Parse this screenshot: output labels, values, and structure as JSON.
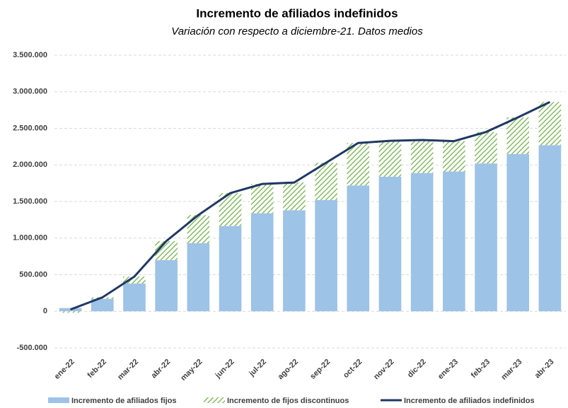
{
  "chart_data": {
    "type": "bar-line",
    "title": "Incremento de afiliados indefinidos",
    "subtitle": "Variación con respecto a diciembre-21. Datos medios",
    "categories": [
      "ene-22",
      "feb-22",
      "mar-22",
      "abr-22",
      "may-22",
      "jun-22",
      "jul-22",
      "ago-22",
      "sep-22",
      "oct-22",
      "nov-22",
      "dic-22",
      "ene-23",
      "feb-23",
      "mar-23",
      "abr-23"
    ],
    "series": [
      {
        "name": "Incremento de afiliados fijos",
        "kind": "bar",
        "color": "#9dc3e6",
        "values": [
          45000,
          170000,
          380000,
          700000,
          930000,
          1165000,
          1340000,
          1380000,
          1520000,
          1720000,
          1840000,
          1890000,
          1910000,
          2020000,
          2150000,
          2270000
        ]
      },
      {
        "name": "Incremento de fijos discontinuos",
        "kind": "bar",
        "color": "#70ad47",
        "values": [
          -20000,
          20000,
          95000,
          260000,
          385000,
          450000,
          400000,
          380000,
          510000,
          580000,
          490000,
          450000,
          415000,
          430000,
          500000,
          590000
        ]
      },
      {
        "name": "Incremento de afiliados indefinidos",
        "kind": "line",
        "color": "#203864",
        "values": [
          25000,
          190000,
          475000,
          960000,
          1315000,
          1615000,
          1740000,
          1760000,
          2030000,
          2300000,
          2330000,
          2340000,
          2325000,
          2450000,
          2650000,
          2860000
        ]
      }
    ],
    "ylim": [
      -500000,
      3500000
    ],
    "yticks": [
      {
        "value": -500000,
        "label": "-500.000"
      },
      0,
      {
        "value": 500000,
        "label": "500.000"
      },
      {
        "value": 1000000,
        "label": "1.000.000"
      },
      {
        "value": 1500000,
        "label": "1.500.000"
      },
      {
        "value": 2000000,
        "label": "2.000.000"
      },
      {
        "value": 2500000,
        "label": "2.500.000"
      },
      {
        "value": 3000000,
        "label": "3.000.000"
      },
      {
        "value": 3500000,
        "label": "3.500.000"
      }
    ],
    "grid": true
  }
}
